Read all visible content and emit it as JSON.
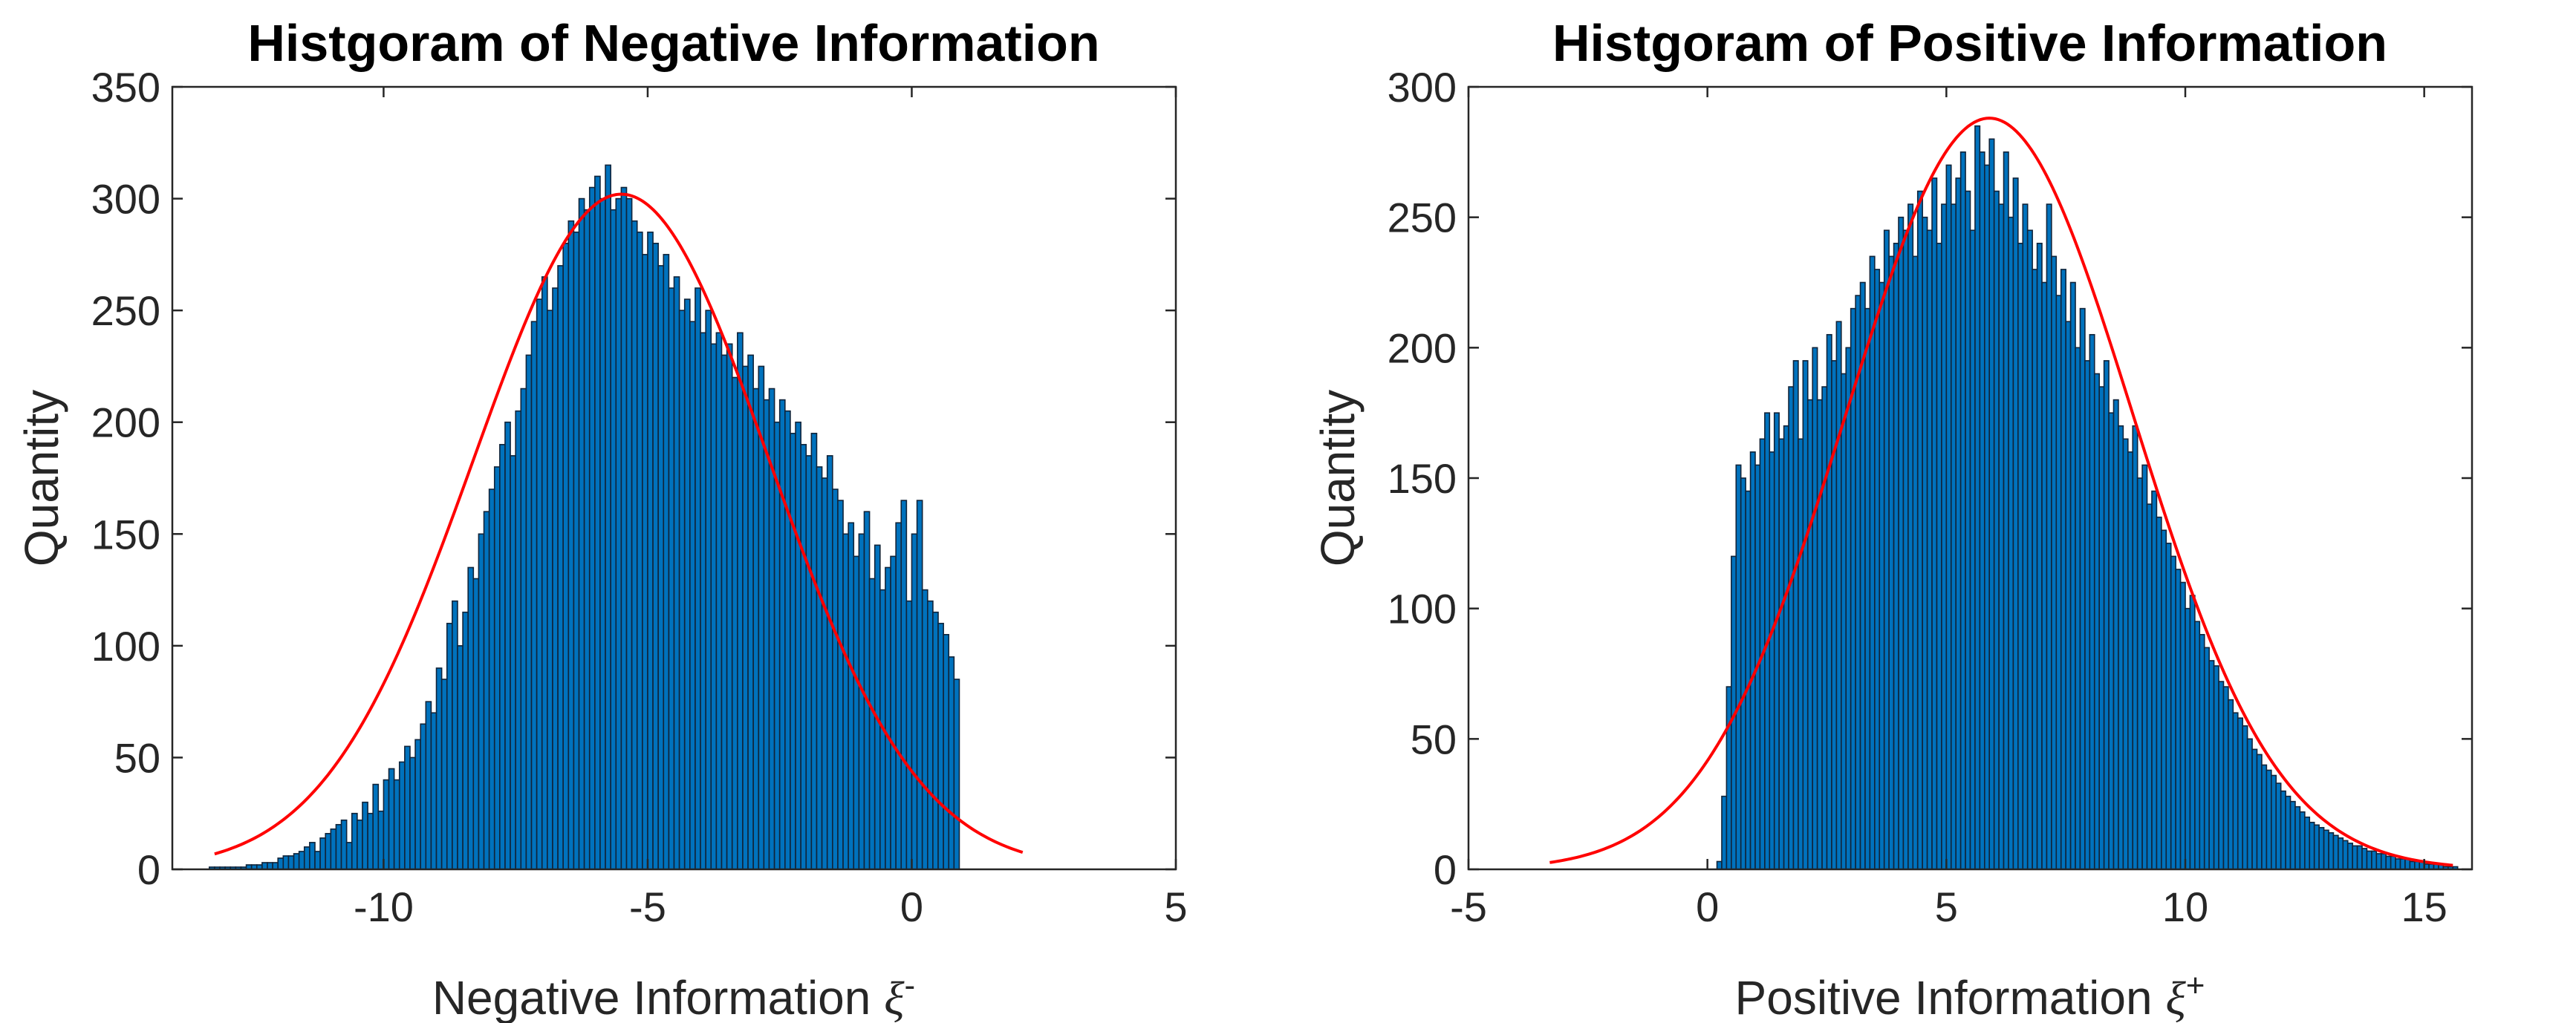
{
  "chart_data": [
    {
      "type": "bar",
      "title": "Histgoram of Negative Information",
      "xlabel": "Negative Information ",
      "xlabel_symbol": "ξ",
      "xlabel_superscript": "-",
      "ylabel": "Quantity",
      "xlim": [
        -14,
        5
      ],
      "ylim": [
        0,
        350
      ],
      "xticks": [
        -10,
        -5,
        0,
        5
      ],
      "yticks": [
        0,
        50,
        100,
        150,
        200,
        250,
        300,
        350
      ],
      "grid": false,
      "bar_color": "#0072BD",
      "fit_color": "#ff0000",
      "bins": {
        "start": -13.3,
        "width": 0.1,
        "counts": [
          1,
          1,
          1,
          1,
          1,
          1,
          1,
          2,
          2,
          2,
          3,
          3,
          3,
          5,
          6,
          6,
          7,
          8,
          10,
          12,
          8,
          14,
          16,
          18,
          20,
          22,
          12,
          25,
          22,
          30,
          25,
          38,
          26,
          40,
          45,
          40,
          48,
          55,
          50,
          58,
          65,
          75,
          70,
          90,
          85,
          110,
          120,
          100,
          115,
          135,
          130,
          150,
          160,
          170,
          180,
          190,
          200,
          185,
          205,
          215,
          230,
          245,
          255,
          265,
          250,
          260,
          270,
          280,
          290,
          285,
          300,
          295,
          305,
          310,
          300,
          315,
          295,
          300,
          305,
          300,
          290,
          285,
          275,
          285,
          280,
          270,
          275,
          260,
          265,
          250,
          255,
          245,
          260,
          240,
          250,
          235,
          240,
          230,
          235,
          220,
          240,
          225,
          230,
          215,
          225,
          210,
          215,
          200,
          210,
          205,
          195,
          200,
          190,
          185,
          195,
          180,
          175,
          185,
          170,
          165,
          150,
          155,
          140,
          150,
          160,
          130,
          145,
          125,
          135,
          140,
          155,
          165,
          120,
          150,
          165,
          125,
          120,
          115,
          110,
          105,
          95,
          85
        ],
        "counts_note": ""
      },
      "fit": {
        "type": "normal",
        "mean": -5.5,
        "sd": 2.8,
        "peak": 302,
        "x_range": [
          -13.2,
          2.1
        ]
      }
    },
    {
      "type": "bar",
      "title": "Histgoram of Positive Information",
      "xlabel": "Positive Information ",
      "xlabel_symbol": "ξ",
      "xlabel_superscript": "+",
      "ylabel": "Quantity",
      "xlim": [
        -5,
        16
      ],
      "ylim": [
        0,
        300
      ],
      "xticks": [
        -5,
        0,
        5,
        10,
        15
      ],
      "yticks": [
        0,
        50,
        100,
        150,
        200,
        250,
        300
      ],
      "grid": false,
      "bar_color": "#0072BD",
      "fit_color": "#ff0000",
      "bins": {
        "start": 0.2,
        "width": 0.1,
        "counts": [
          3,
          28,
          70,
          120,
          155,
          150,
          145,
          160,
          155,
          165,
          175,
          160,
          175,
          165,
          170,
          185,
          195,
          165,
          195,
          180,
          200,
          180,
          185,
          205,
          195,
          210,
          190,
          200,
          215,
          220,
          225,
          215,
          235,
          230,
          225,
          245,
          235,
          240,
          250,
          245,
          255,
          235,
          260,
          250,
          245,
          265,
          240,
          255,
          270,
          255,
          265,
          275,
          260,
          245,
          285,
          275,
          270,
          280,
          260,
          255,
          275,
          250,
          265,
          240,
          255,
          245,
          230,
          240,
          225,
          255,
          235,
          220,
          230,
          210,
          225,
          200,
          215,
          195,
          205,
          190,
          185,
          195,
          175,
          180,
          170,
          165,
          160,
          170,
          150,
          155,
          140,
          145,
          135,
          130,
          125,
          120,
          115,
          110,
          100,
          105,
          95,
          90,
          85,
          80,
          78,
          72,
          70,
          65,
          60,
          58,
          55,
          50,
          46,
          44,
          40,
          38,
          36,
          33,
          30,
          28,
          26,
          24,
          22,
          20,
          18,
          17,
          16,
          15,
          14,
          13,
          12,
          11,
          10,
          9,
          9,
          8,
          7,
          7,
          6,
          6,
          5,
          5,
          4,
          4,
          4,
          3,
          3,
          3,
          2,
          2,
          2,
          2,
          1,
          1,
          1
        ],
        "counts_note": ""
      },
      "fit": {
        "type": "normal",
        "mean": 5.9,
        "sd": 3.0,
        "peak": 288,
        "x_range": [
          -3.3,
          15.6
        ]
      }
    }
  ]
}
